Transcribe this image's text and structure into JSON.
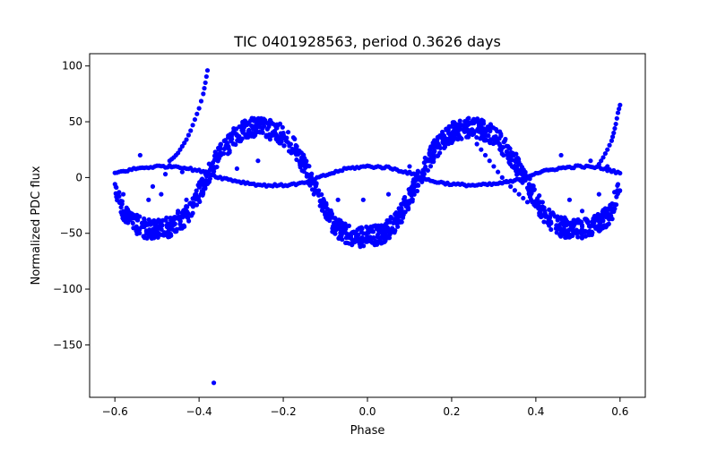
{
  "chart_data": {
    "type": "scatter",
    "title": "TIC 0401928563, period 0.3626 days",
    "xlabel": "Phase",
    "ylabel": "Normalized PDC flux",
    "xlim": [
      -0.66,
      0.66
    ],
    "ylim": [
      -197,
      111
    ],
    "xticks": [
      -0.6,
      -0.4,
      -0.2,
      0.0,
      0.2,
      0.4,
      0.6
    ],
    "xtick_labels": [
      "−0.6",
      "−0.4",
      "−0.2",
      "0.0",
      "0.2",
      "0.4",
      "0.6"
    ],
    "yticks": [
      100,
      50,
      0,
      -50,
      -100,
      -150
    ],
    "ytick_labels": [
      "100",
      "50",
      "0",
      "−50",
      "−100",
      "−150"
    ],
    "grid": false,
    "marker_color": "#0000ff",
    "series": [
      {
        "description_role": "main pulsation light curve (band, smooth approximation)",
        "band": {
          "x": [
            -0.6,
            -0.58,
            -0.56,
            -0.54,
            -0.52,
            -0.5,
            -0.48,
            -0.46,
            -0.44,
            -0.42,
            -0.4,
            -0.38,
            -0.36,
            -0.34,
            -0.32,
            -0.3,
            -0.28,
            -0.26,
            -0.24,
            -0.22,
            -0.2,
            -0.18,
            -0.16,
            -0.14,
            -0.12,
            -0.1,
            -0.08,
            -0.06,
            -0.04,
            -0.02,
            0.0,
            0.02,
            0.04,
            0.06,
            0.08,
            0.1,
            0.12,
            0.14,
            0.16,
            0.18,
            0.2,
            0.22,
            0.24,
            0.26,
            0.28,
            0.3,
            0.32,
            0.34,
            0.36,
            0.38,
            0.4,
            0.42,
            0.44,
            0.46,
            0.48,
            0.5,
            0.52,
            0.54,
            0.56,
            0.58,
            0.6
          ],
          "y": [
            -5,
            -30,
            -40,
            -44,
            -46,
            -46,
            -45,
            -43,
            -38,
            -28,
            -14,
            2,
            15,
            26,
            35,
            41,
            44,
            45,
            44,
            42,
            38,
            30,
            18,
            3,
            -14,
            -30,
            -42,
            -49,
            -52,
            -53,
            -53,
            -52,
            -49,
            -43,
            -32,
            -18,
            -2,
            13,
            25,
            34,
            40,
            43,
            45,
            44,
            42,
            38,
            30,
            20,
            8,
            -6,
            -20,
            -32,
            -40,
            -44,
            -46,
            -46,
            -45,
            -43,
            -38,
            -30,
            -5
          ],
          "spread": 9
        }
      },
      {
        "description_role": "secondary curve (thin sinusoid)",
        "x": [
          -0.6,
          -0.55,
          -0.5,
          -0.45,
          -0.4,
          -0.35,
          -0.3,
          -0.25,
          -0.2,
          -0.15,
          -0.1,
          -0.05,
          0.0,
          0.05,
          0.1,
          0.15,
          0.2,
          0.25,
          0.3,
          0.35,
          0.4,
          0.45,
          0.5,
          0.55,
          0.6
        ],
        "y": [
          4,
          8,
          10,
          10,
          6,
          0,
          -4,
          -7,
          -7,
          -5,
          2,
          8,
          10,
          9,
          4,
          -3,
          -6,
          -7,
          -6,
          -3,
          4,
          8,
          10,
          9,
          4
        ]
      },
      {
        "description_role": "left rising branch",
        "x": [
          -0.47,
          -0.46,
          -0.45,
          -0.44,
          -0.43,
          -0.42,
          -0.41,
          -0.4,
          -0.39,
          -0.385,
          -0.38
        ],
        "y": [
          15,
          18,
          22,
          28,
          34,
          42,
          52,
          62,
          75,
          85,
          96
        ]
      },
      {
        "description_role": "right rising branch",
        "x": [
          0.55,
          0.56,
          0.57,
          0.58,
          0.585,
          0.59,
          0.595,
          0.6
        ],
        "y": [
          12,
          18,
          25,
          33,
          40,
          48,
          58,
          65
        ]
      },
      {
        "description_role": "descending branch",
        "x": [
          0.26,
          0.28,
          0.3,
          0.32,
          0.34,
          0.36,
          0.38
        ],
        "y": [
          30,
          20,
          10,
          0,
          -8,
          -15,
          -22
        ]
      },
      {
        "description_role": "outliers",
        "x": [
          -0.58,
          -0.54,
          -0.52,
          -0.51,
          -0.49,
          -0.48,
          -0.47,
          -0.45,
          -0.44,
          -0.43,
          -0.31,
          -0.26,
          -0.07,
          -0.01,
          0.05,
          0.1,
          0.46,
          0.48,
          0.51,
          0.53,
          0.55,
          0.57,
          -0.365
        ],
        "y": [
          -15,
          20,
          -20,
          -8,
          -15,
          3,
          10,
          -30,
          5,
          -20,
          8,
          15,
          -20,
          -20,
          -15,
          10,
          20,
          -20,
          -30,
          15,
          -15,
          10,
          -184
        ]
      }
    ]
  }
}
